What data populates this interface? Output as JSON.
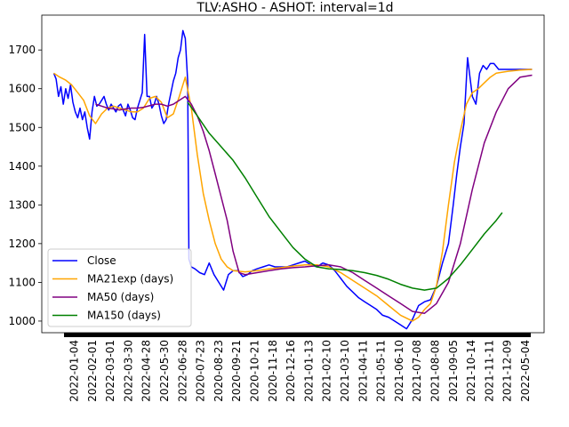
{
  "chart_data": {
    "type": "line",
    "title": "TLV:ASHO - ASHOT: interval=1d",
    "xlabel": "",
    "ylabel": "",
    "ylim": [
      970,
      1790
    ],
    "yticks": [
      1000,
      1100,
      1200,
      1300,
      1400,
      1500,
      1600,
      1700
    ],
    "xtick_labels": [
      "2022-01-04",
      "2022-02-01",
      "2022-03-01",
      "2022-03-30",
      "2022-04-28",
      "2022-05-30",
      "2022-06-28",
      "2020-07-23",
      "2020-08-23",
      "2020-09-21",
      "2020-10-21",
      "2020-11-18",
      "2020-12-16",
      "2021-01-13",
      "2021-02-10",
      "2021-03-10",
      "2021-04-11",
      "2021-05-11",
      "2021-06-10",
      "2021-07-08",
      "2021-08-08",
      "2021-09-05",
      "2021-10-14",
      "2021-11-11",
      "2021-12-09",
      "2022-05-04"
    ],
    "legend_position": "lower-left",
    "grid": false,
    "series": [
      {
        "name": "Close",
        "color": "#0000ff",
        "values": [
          [
            0,
            1640
          ],
          [
            0.2,
            1625
          ],
          [
            0.4,
            1580
          ],
          [
            0.6,
            1605
          ],
          [
            0.8,
            1560
          ],
          [
            1,
            1600
          ],
          [
            1.2,
            1575
          ],
          [
            1.4,
            1610
          ],
          [
            1.6,
            1565
          ],
          [
            1.8,
            1540
          ],
          [
            2,
            1525
          ],
          [
            2.2,
            1550
          ],
          [
            2.4,
            1520
          ],
          [
            2.6,
            1540
          ],
          [
            2.8,
            1500
          ],
          [
            3,
            1470
          ],
          [
            3.2,
            1540
          ],
          [
            3.4,
            1580
          ],
          [
            3.6,
            1555
          ],
          [
            3.8,
            1560
          ],
          [
            4,
            1570
          ],
          [
            4.2,
            1580
          ],
          [
            4.4,
            1560
          ],
          [
            4.6,
            1545
          ],
          [
            4.8,
            1560
          ],
          [
            5,
            1550
          ],
          [
            5.2,
            1540
          ],
          [
            5.4,
            1555
          ],
          [
            5.6,
            1560
          ],
          [
            5.8,
            1545
          ],
          [
            6,
            1530
          ],
          [
            6.2,
            1560
          ],
          [
            6.4,
            1545
          ],
          [
            6.6,
            1525
          ],
          [
            6.8,
            1520
          ],
          [
            7,
            1550
          ],
          [
            7.2,
            1570
          ],
          [
            7.4,
            1590
          ],
          [
            7.6,
            1740
          ],
          [
            7.8,
            1580
          ],
          [
            8,
            1580
          ],
          [
            8.2,
            1550
          ],
          [
            8.4,
            1560
          ],
          [
            8.6,
            1580
          ],
          [
            8.8,
            1560
          ],
          [
            9,
            1530
          ],
          [
            9.2,
            1510
          ],
          [
            9.4,
            1520
          ],
          [
            9.6,
            1560
          ],
          [
            9.8,
            1590
          ],
          [
            10,
            1620
          ],
          [
            10.2,
            1640
          ],
          [
            10.4,
            1680
          ],
          [
            10.6,
            1700
          ],
          [
            10.8,
            1750
          ],
          [
            11,
            1730
          ],
          [
            11.2,
            1620
          ],
          [
            11.3,
            1160
          ],
          [
            11.5,
            1140
          ],
          [
            11.8,
            1135
          ],
          [
            12.2,
            1125
          ],
          [
            12.6,
            1120
          ],
          [
            13,
            1150
          ],
          [
            13.4,
            1120
          ],
          [
            13.8,
            1100
          ],
          [
            14.2,
            1080
          ],
          [
            14.6,
            1120
          ],
          [
            15,
            1130
          ],
          [
            15.4,
            1130
          ],
          [
            15.8,
            1115
          ],
          [
            16.2,
            1120
          ],
          [
            16.6,
            1130
          ],
          [
            17,
            1135
          ],
          [
            17.5,
            1140
          ],
          [
            18,
            1145
          ],
          [
            18.5,
            1140
          ],
          [
            19,
            1140
          ],
          [
            19.5,
            1140
          ],
          [
            20,
            1145
          ],
          [
            20.5,
            1150
          ],
          [
            21,
            1155
          ],
          [
            21.5,
            1145
          ],
          [
            22,
            1140
          ],
          [
            22.5,
            1150
          ],
          [
            23,
            1145
          ],
          [
            23.5,
            1130
          ],
          [
            24,
            1110
          ],
          [
            24.5,
            1090
          ],
          [
            25,
            1075
          ],
          [
            25.5,
            1060
          ],
          [
            26,
            1050
          ],
          [
            26.5,
            1040
          ],
          [
            27,
            1030
          ],
          [
            27.5,
            1015
          ],
          [
            28,
            1010
          ],
          [
            28.5,
            1000
          ],
          [
            29,
            990
          ],
          [
            29.5,
            980
          ],
          [
            30,
            1005
          ],
          [
            30.5,
            1040
          ],
          [
            31,
            1050
          ],
          [
            31.5,
            1055
          ],
          [
            32,
            1090
          ],
          [
            32.5,
            1150
          ],
          [
            33,
            1200
          ],
          [
            33.4,
            1300
          ],
          [
            33.7,
            1380
          ],
          [
            34,
            1450
          ],
          [
            34.3,
            1510
          ],
          [
            34.6,
            1680
          ],
          [
            35,
            1580
          ],
          [
            35.3,
            1560
          ],
          [
            35.6,
            1640
          ],
          [
            35.9,
            1660
          ],
          [
            36.2,
            1650
          ],
          [
            36.5,
            1665
          ],
          [
            36.8,
            1665
          ],
          [
            37.2,
            1650
          ],
          [
            37.6,
            1650
          ],
          [
            38,
            1650
          ],
          [
            38.5,
            1650
          ],
          [
            39,
            1650
          ],
          [
            39.5,
            1650
          ],
          [
            40,
            1650
          ]
        ]
      },
      {
        "name": "MA21exp (days)",
        "color": "#ffa500",
        "values": [
          [
            0,
            1640
          ],
          [
            0.5,
            1630
          ],
          [
            1,
            1622
          ],
          [
            1.5,
            1610
          ],
          [
            2,
            1590
          ],
          [
            2.5,
            1570
          ],
          [
            3,
            1530
          ],
          [
            3.5,
            1510
          ],
          [
            4,
            1535
          ],
          [
            4.5,
            1550
          ],
          [
            5,
            1555
          ],
          [
            5.5,
            1550
          ],
          [
            6,
            1545
          ],
          [
            6.5,
            1540
          ],
          [
            7,
            1540
          ],
          [
            7.5,
            1550
          ],
          [
            8,
            1575
          ],
          [
            8.5,
            1580
          ],
          [
            9,
            1565
          ],
          [
            9.5,
            1525
          ],
          [
            10,
            1535
          ],
          [
            10.5,
            1580
          ],
          [
            11,
            1630
          ],
          [
            11.5,
            1550
          ],
          [
            12,
            1430
          ],
          [
            12.5,
            1330
          ],
          [
            13,
            1260
          ],
          [
            13.5,
            1200
          ],
          [
            14,
            1160
          ],
          [
            14.5,
            1140
          ],
          [
            15,
            1130
          ],
          [
            16,
            1127
          ],
          [
            17,
            1130
          ],
          [
            18,
            1135
          ],
          [
            19,
            1138
          ],
          [
            20,
            1142
          ],
          [
            21,
            1145
          ],
          [
            22,
            1145
          ],
          [
            23,
            1140
          ],
          [
            24,
            1125
          ],
          [
            25,
            1105
          ],
          [
            26,
            1085
          ],
          [
            27,
            1065
          ],
          [
            28,
            1040
          ],
          [
            29,
            1015
          ],
          [
            30,
            1000
          ],
          [
            30.5,
            1010
          ],
          [
            31,
            1030
          ],
          [
            31.5,
            1045
          ],
          [
            32,
            1090
          ],
          [
            32.5,
            1180
          ],
          [
            33,
            1300
          ],
          [
            33.5,
            1410
          ],
          [
            34,
            1490
          ],
          [
            34.5,
            1560
          ],
          [
            35,
            1590
          ],
          [
            35.5,
            1600
          ],
          [
            36,
            1615
          ],
          [
            36.5,
            1630
          ],
          [
            37,
            1640
          ],
          [
            38,
            1645
          ],
          [
            39,
            1648
          ],
          [
            40,
            1650
          ]
        ]
      },
      {
        "name": "MA50 (days)",
        "color": "#800080",
        "values": [
          [
            3.5,
            1560
          ],
          [
            4,
            1555
          ],
          [
            4.5,
            1550
          ],
          [
            5,
            1548
          ],
          [
            5.5,
            1545
          ],
          [
            6,
            1548
          ],
          [
            6.5,
            1550
          ],
          [
            7,
            1550
          ],
          [
            7.5,
            1552
          ],
          [
            8,
            1556
          ],
          [
            8.5,
            1560
          ],
          [
            9,
            1560
          ],
          [
            9.5,
            1555
          ],
          [
            10,
            1560
          ],
          [
            10.5,
            1570
          ],
          [
            11,
            1580
          ],
          [
            11.5,
            1560
          ],
          [
            12,
            1530
          ],
          [
            12.5,
            1490
          ],
          [
            13,
            1440
          ],
          [
            13.5,
            1380
          ],
          [
            14,
            1320
          ],
          [
            14.5,
            1260
          ],
          [
            15,
            1180
          ],
          [
            15.5,
            1125
          ],
          [
            16,
            1120
          ],
          [
            17,
            1125
          ],
          [
            18,
            1130
          ],
          [
            19,
            1135
          ],
          [
            20,
            1138
          ],
          [
            21,
            1140
          ],
          [
            22,
            1143
          ],
          [
            23,
            1145
          ],
          [
            24,
            1140
          ],
          [
            25,
            1125
          ],
          [
            26,
            1105
          ],
          [
            27,
            1085
          ],
          [
            28,
            1065
          ],
          [
            29,
            1045
          ],
          [
            30,
            1025
          ],
          [
            31,
            1020
          ],
          [
            32,
            1045
          ],
          [
            33,
            1100
          ],
          [
            34,
            1200
          ],
          [
            35,
            1340
          ],
          [
            36,
            1460
          ],
          [
            37,
            1540
          ],
          [
            38,
            1600
          ],
          [
            39,
            1630
          ],
          [
            40,
            1635
          ]
        ]
      },
      {
        "name": "MA150 (days)",
        "color": "#008000",
        "values": [
          [
            11.2,
            1565
          ],
          [
            12,
            1530
          ],
          [
            13,
            1485
          ],
          [
            14,
            1450
          ],
          [
            15,
            1415
          ],
          [
            16,
            1370
          ],
          [
            17,
            1320
          ],
          [
            18,
            1270
          ],
          [
            19,
            1230
          ],
          [
            20,
            1190
          ],
          [
            21,
            1160
          ],
          [
            22,
            1140
          ],
          [
            23,
            1135
          ],
          [
            24,
            1133
          ],
          [
            25,
            1130
          ],
          [
            26,
            1125
          ],
          [
            27,
            1118
          ],
          [
            28,
            1108
          ],
          [
            29,
            1095
          ],
          [
            30,
            1085
          ],
          [
            31,
            1080
          ],
          [
            32,
            1085
          ],
          [
            33,
            1110
          ],
          [
            34,
            1145
          ],
          [
            35,
            1185
          ],
          [
            36,
            1225
          ],
          [
            37,
            1260
          ],
          [
            37.5,
            1280
          ]
        ]
      }
    ]
  }
}
